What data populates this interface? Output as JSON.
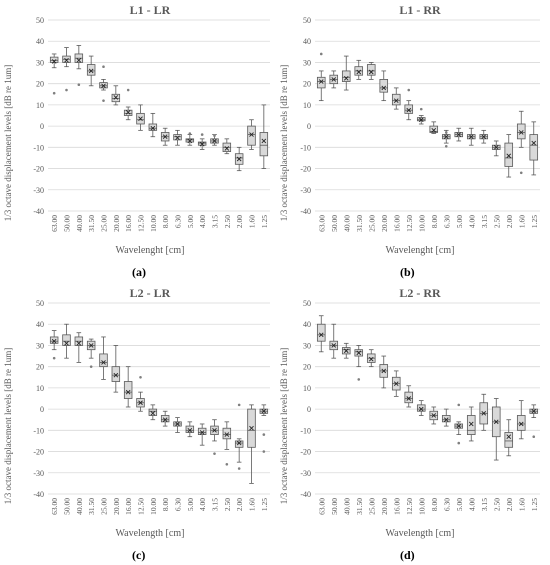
{
  "chart_data": [
    {
      "type": "box",
      "panel_label": "(a)",
      "title": "L1 - LR",
      "ylabel": "1/3 octave displacement levels [dB re 1um]",
      "xlabel": "Wavelenght [cm]",
      "ylim": [
        -40,
        50
      ],
      "yticks": [
        50,
        40,
        30,
        20,
        10,
        0,
        -10,
        -20,
        -30,
        -40
      ],
      "grid": true,
      "categories": [
        "63.00",
        "50.00",
        "40.00",
        "31.50",
        "25.00",
        "20.00",
        "16.00",
        "12.50",
        "10.00",
        "8.00",
        "6.30",
        "5.00",
        "4.00",
        "3.15",
        "2.50",
        "2.00",
        "1.60",
        "1.25"
      ],
      "boxes": [
        {
          "min": 27.5,
          "q1": 30,
          "median": 31,
          "q3": 32.5,
          "max": 34,
          "mean": 30.5,
          "outliers": [
            15.5
          ]
        },
        {
          "min": 28,
          "q1": 30,
          "median": 31.5,
          "q3": 33,
          "max": 37,
          "mean": 31,
          "outliers": [
            17
          ]
        },
        {
          "min": 27,
          "q1": 30,
          "median": 32,
          "q3": 34,
          "max": 38,
          "mean": 31,
          "outliers": [
            19.5
          ]
        },
        {
          "min": 19,
          "q1": 24,
          "median": 26,
          "q3": 29,
          "max": 33,
          "mean": 26,
          "outliers": []
        },
        {
          "min": 17,
          "q1": 18,
          "median": 19,
          "q3": 20.5,
          "max": 22,
          "mean": 19,
          "outliers": [
            12,
            28
          ]
        },
        {
          "min": 10,
          "q1": 11.5,
          "median": 13,
          "q3": 15,
          "max": 19,
          "mean": 13.5,
          "outliers": []
        },
        {
          "min": 3,
          "q1": 5,
          "median": 6,
          "q3": 7.5,
          "max": 9,
          "mean": 6.5,
          "outliers": [
            17
          ]
        },
        {
          "min": -2,
          "q1": 1,
          "median": 3,
          "q3": 6,
          "max": 10,
          "mean": 3.5,
          "outliers": []
        },
        {
          "min": -5,
          "q1": -2,
          "median": -1,
          "q3": 1,
          "max": 6,
          "mean": -1,
          "outliers": []
        },
        {
          "min": -9,
          "q1": -7,
          "median": -5,
          "q3": -3,
          "max": -1,
          "mean": -5,
          "outliers": []
        },
        {
          "min": -9,
          "q1": -6.5,
          "median": -5,
          "q3": -4,
          "max": -2,
          "mean": -5.5,
          "outliers": []
        },
        {
          "min": -9,
          "q1": -7.5,
          "median": -6.5,
          "q3": -6,
          "max": -4,
          "mean": -7,
          "outliers": [
            -3.5
          ]
        },
        {
          "min": -11,
          "q1": -9,
          "median": -8,
          "q3": -7.5,
          "max": -6,
          "mean": -8.5,
          "outliers": [
            -4
          ]
        },
        {
          "min": -9,
          "q1": -8,
          "median": -7,
          "q3": -6,
          "max": -4,
          "mean": -7,
          "outliers": [
            -4.5
          ]
        },
        {
          "min": -13,
          "q1": -12,
          "median": -10,
          "q3": -8,
          "max": -6,
          "mean": -10.5,
          "outliers": []
        },
        {
          "min": -21,
          "q1": -18,
          "median": -15,
          "q3": -13,
          "max": -10,
          "mean": -15.5,
          "outliers": []
        },
        {
          "min": -11,
          "q1": -9,
          "median": -4,
          "q3": 0,
          "max": 3,
          "mean": -4,
          "outliers": []
        },
        {
          "min": -20,
          "q1": -14,
          "median": -9,
          "q3": -3,
          "max": 10,
          "mean": -7,
          "outliers": []
        }
      ]
    },
    {
      "type": "box",
      "panel_label": "(b)",
      "title": "L1 - RR",
      "ylabel": "1/3 octave displacement levels [dB re 1um]",
      "xlabel": "Wavelenght [cm]",
      "ylim": [
        -40,
        50
      ],
      "yticks": [
        50,
        40,
        30,
        20,
        10,
        0,
        -10,
        -20,
        -30,
        -40
      ],
      "grid": true,
      "categories": [
        "63.00",
        "50.00",
        "40.00",
        "31.50",
        "25.00",
        "20.00",
        "16.00",
        "12.50",
        "10.00",
        "8.00",
        "6.30",
        "5.00",
        "4.00",
        "3.15",
        "2.50",
        "2.00",
        "1.60",
        "1.25"
      ],
      "boxes": [
        {
          "min": 12,
          "q1": 18,
          "median": 21,
          "q3": 23,
          "max": 26,
          "mean": 21,
          "outliers": [
            34
          ]
        },
        {
          "min": 18,
          "q1": 20,
          "median": 22,
          "q3": 24,
          "max": 26,
          "mean": 22,
          "outliers": []
        },
        {
          "min": 17,
          "q1": 21,
          "median": 23,
          "q3": 26,
          "max": 33,
          "mean": 22.5,
          "outliers": []
        },
        {
          "min": 22,
          "q1": 24,
          "median": 26,
          "q3": 28,
          "max": 31,
          "mean": 25.5,
          "outliers": []
        },
        {
          "min": 22,
          "q1": 24,
          "median": 26,
          "q3": 29,
          "max": 30,
          "mean": 25.5,
          "outliers": []
        },
        {
          "min": 12,
          "q1": 16,
          "median": 18,
          "q3": 22,
          "max": 26,
          "mean": 18,
          "outliers": []
        },
        {
          "min": 8,
          "q1": 10,
          "median": 12,
          "q3": 15,
          "max": 18,
          "mean": 12,
          "outliers": []
        },
        {
          "min": 3,
          "q1": 6,
          "median": 7.5,
          "q3": 10,
          "max": 12,
          "mean": 7.5,
          "outliers": [
            17
          ]
        },
        {
          "min": 1,
          "q1": 2.5,
          "median": 3,
          "q3": 4,
          "max": 5,
          "mean": 3,
          "outliers": [
            8
          ]
        },
        {
          "min": -3.5,
          "q1": -3,
          "median": -2.5,
          "q3": 0,
          "max": 2,
          "mean": -2,
          "outliers": []
        },
        {
          "min": -8,
          "q1": -6,
          "median": -5,
          "q3": -4,
          "max": -2,
          "mean": -5,
          "outliers": [
            -3,
            -9.5
          ]
        },
        {
          "min": -7,
          "q1": -5,
          "median": -4,
          "q3": -3,
          "max": -1,
          "mean": -4,
          "outliers": []
        },
        {
          "min": -9,
          "q1": -6,
          "median": -5,
          "q3": -4,
          "max": -1,
          "mean": -5,
          "outliers": []
        },
        {
          "min": -8,
          "q1": -6,
          "median": -5,
          "q3": -4,
          "max": -2,
          "mean": -5,
          "outliers": []
        },
        {
          "min": -14,
          "q1": -11,
          "median": -10,
          "q3": -9,
          "max": -7,
          "mean": -10,
          "outliers": []
        },
        {
          "min": -24,
          "q1": -19,
          "median": -15,
          "q3": -8,
          "max": -4,
          "mean": -14,
          "outliers": []
        },
        {
          "min": -10,
          "q1": -6,
          "median": -3,
          "q3": 1,
          "max": 7,
          "mean": -3,
          "outliers": [
            -22
          ]
        },
        {
          "min": -23,
          "q1": -16,
          "median": -9,
          "q3": -4,
          "max": 2,
          "mean": -8,
          "outliers": []
        }
      ]
    },
    {
      "type": "box",
      "panel_label": "(c)",
      "title": "L2 - LR",
      "ylabel": "1/3 octave displacement levels [dB re 1um]",
      "xlabel": "Wavelength [cm]",
      "ylim": [
        -40,
        50
      ],
      "yticks": [
        50,
        40,
        30,
        20,
        10,
        0,
        -10,
        -20,
        -30,
        -40
      ],
      "grid": true,
      "categories": [
        "63.00",
        "50.00",
        "40.00",
        "31.50",
        "25.00",
        "20.00",
        "16.00",
        "12.50",
        "10.00",
        "8.00",
        "6.30",
        "5.00",
        "4.00",
        "3.15",
        "2.50",
        "2.00",
        "1.60",
        "1.25"
      ],
      "boxes": [
        {
          "min": 28,
          "q1": 31,
          "median": 32,
          "q3": 34,
          "max": 37,
          "mean": 32,
          "outliers": [
            24
          ]
        },
        {
          "min": 24,
          "q1": 30,
          "median": 32,
          "q3": 35,
          "max": 40,
          "mean": 31,
          "outliers": []
        },
        {
          "min": 22,
          "q1": 30,
          "median": 32,
          "q3": 34,
          "max": 36,
          "mean": 31,
          "outliers": []
        },
        {
          "min": 24,
          "q1": 28,
          "median": 30,
          "q3": 32,
          "max": 33,
          "mean": 30,
          "outliers": [
            20
          ]
        },
        {
          "min": 14,
          "q1": 20,
          "median": 22,
          "q3": 26,
          "max": 34,
          "mean": 22,
          "outliers": []
        },
        {
          "min": 8,
          "q1": 13,
          "median": 16,
          "q3": 20,
          "max": 30,
          "mean": 16,
          "outliers": []
        },
        {
          "min": 1,
          "q1": 5,
          "median": 8,
          "q3": 13,
          "max": 20,
          "mean": 8,
          "outliers": []
        },
        {
          "min": -1,
          "q1": 1,
          "median": 3,
          "q3": 5,
          "max": 8,
          "mean": 3,
          "outliers": [
            15
          ]
        },
        {
          "min": -5,
          "q1": -3,
          "median": -1,
          "q3": 0,
          "max": 2,
          "mean": -2,
          "outliers": []
        },
        {
          "min": -8,
          "q1": -6,
          "median": -5,
          "q3": -3,
          "max": -1,
          "mean": -5,
          "outliers": []
        },
        {
          "min": -11,
          "q1": -8,
          "median": -7,
          "q3": -6,
          "max": -4,
          "mean": -7,
          "outliers": []
        },
        {
          "min": -13,
          "q1": -11,
          "median": -10,
          "q3": -8,
          "max": -6,
          "mean": -10,
          "outliers": []
        },
        {
          "min": -17,
          "q1": -12,
          "median": -11,
          "q3": -9,
          "max": -7,
          "mean": -11,
          "outliers": []
        },
        {
          "min": -15,
          "q1": -12,
          "median": -10,
          "q3": -8,
          "max": -5,
          "mean": -10,
          "outliers": [
            -21
          ]
        },
        {
          "min": -19,
          "q1": -14,
          "median": -12,
          "q3": -9,
          "max": -6,
          "mean": -12,
          "outliers": [
            -26
          ]
        },
        {
          "min": -25,
          "q1": -18,
          "median": -16,
          "q3": -15,
          "max": -14,
          "mean": -16,
          "outliers": [
            -28,
            2
          ]
        },
        {
          "min": -35,
          "q1": -18,
          "median": -10,
          "q3": 0,
          "max": 2,
          "mean": -9,
          "outliers": []
        },
        {
          "min": -3,
          "q1": -2,
          "median": -1,
          "q3": 0,
          "max": 2,
          "mean": -1,
          "outliers": [
            -12,
            -20
          ]
        }
      ]
    },
    {
      "type": "box",
      "panel_label": "(d)",
      "title": "L2 - RR",
      "ylabel": "1/3 octave displacement levels [dB re 1um]",
      "xlabel": "Wavelength [cm]",
      "ylim": [
        -40,
        50
      ],
      "yticks": [
        50,
        40,
        30,
        20,
        10,
        0,
        -10,
        -20,
        -30,
        -40
      ],
      "grid": true,
      "categories": [
        "63.00",
        "50.00",
        "40.00",
        "31.50",
        "25.00",
        "20.00",
        "16.00",
        "12.50",
        "10.00",
        "8.00",
        "6.30",
        "5.00",
        "4.00",
        "3.15",
        "2.50",
        "2.00",
        "1.60",
        "1.25"
      ],
      "boxes": [
        {
          "min": 27,
          "q1": 32,
          "median": 35,
          "q3": 40,
          "max": 44,
          "mean": 35,
          "outliers": []
        },
        {
          "min": 24,
          "q1": 28,
          "median": 30,
          "q3": 32,
          "max": 40,
          "mean": 30,
          "outliers": []
        },
        {
          "min": 24,
          "q1": 26,
          "median": 28,
          "q3": 29,
          "max": 31,
          "mean": 27.5,
          "outliers": []
        },
        {
          "min": 20,
          "q1": 25,
          "median": 27,
          "q3": 28,
          "max": 30,
          "mean": 26.5,
          "outliers": [
            14
          ]
        },
        {
          "min": 20,
          "q1": 22,
          "median": 24,
          "q3": 26,
          "max": 28,
          "mean": 23.5,
          "outliers": []
        },
        {
          "min": 10,
          "q1": 15,
          "median": 18,
          "q3": 21,
          "max": 25,
          "mean": 18,
          "outliers": []
        },
        {
          "min": 6,
          "q1": 9,
          "median": 12,
          "q3": 15,
          "max": 18,
          "mean": 12,
          "outliers": []
        },
        {
          "min": 1,
          "q1": 3,
          "median": 5,
          "q3": 8,
          "max": 11,
          "mean": 5,
          "outliers": []
        },
        {
          "min": -3,
          "q1": -1,
          "median": 0,
          "q3": 2,
          "max": 4,
          "mean": 0,
          "outliers": []
        },
        {
          "min": -7,
          "q1": -5,
          "median": -3,
          "q3": -1,
          "max": 1,
          "mean": -3,
          "outliers": []
        },
        {
          "min": -8,
          "q1": -6,
          "median": -5,
          "q3": -3,
          "max": 0,
          "mean": -5,
          "outliers": []
        },
        {
          "min": -12,
          "q1": -9,
          "median": -8,
          "q3": -7,
          "max": -6,
          "mean": -8,
          "outliers": [
            -16,
            2
          ]
        },
        {
          "min": -15,
          "q1": -12,
          "median": -10,
          "q3": -3,
          "max": 1,
          "mean": -7,
          "outliers": []
        },
        {
          "min": -10,
          "q1": -7,
          "median": -2,
          "q3": 3,
          "max": 7,
          "mean": -2,
          "outliers": []
        },
        {
          "min": -24,
          "q1": -13,
          "median": -6,
          "q3": 1,
          "max": 5,
          "mean": -6,
          "outliers": []
        },
        {
          "min": -22,
          "q1": -18,
          "median": -15,
          "q3": -11,
          "max": -5,
          "mean": -13,
          "outliers": []
        },
        {
          "min": -14,
          "q1": -10,
          "median": -7,
          "q3": -3,
          "max": 4,
          "mean": -7,
          "outliers": []
        },
        {
          "min": -4,
          "q1": -2,
          "median": -1,
          "q3": 0,
          "max": 2,
          "mean": -1,
          "outliers": [
            -13
          ]
        }
      ]
    }
  ],
  "colors": {
    "box_fill": "#d9d9d9",
    "box_stroke": "#595959",
    "grid": "#d9d9d9",
    "text": "#595959",
    "outlier": "#7f7f7f"
  }
}
